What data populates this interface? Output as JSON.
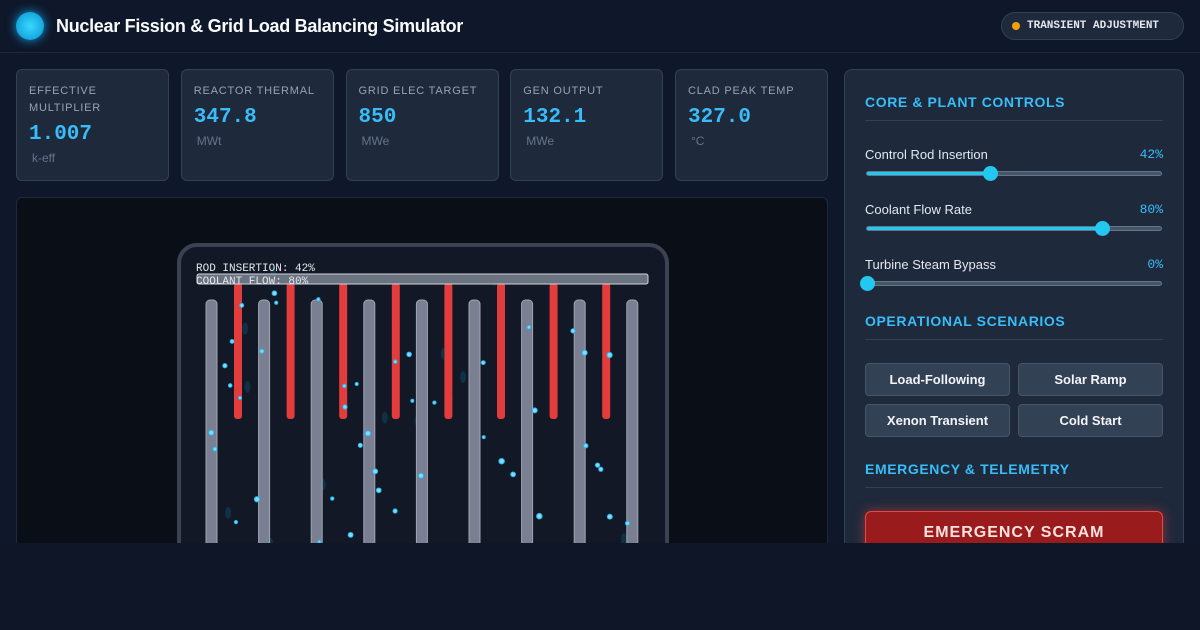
{
  "header": {
    "title": "Nuclear Fission & Grid Load Balancing Simulator",
    "status": "TRANSIENT ADJUSTMENT"
  },
  "metrics": [
    {
      "label": "EFFECTIVE MULTIPLIER",
      "value": "1.007",
      "unit": "k-eff"
    },
    {
      "label": "REACTOR THERMAL",
      "value": "347.8",
      "unit": "MWt"
    },
    {
      "label": "GRID ELEC TARGET",
      "value": "850",
      "unit": "MWe"
    },
    {
      "label": "GEN OUTPUT",
      "value": "132.1",
      "unit": "MWe"
    },
    {
      "label": "CLAD PEAK TEMP",
      "value": "327.0",
      "unit": "°C"
    }
  ],
  "simulation": {
    "overlay": [
      "ROD INSERTION: 42%",
      "COOLANT FLOW: 80%"
    ]
  },
  "controls_panel": {
    "title": "CORE & PLANT CONTROLS",
    "controls": [
      {
        "label": "Control Rod Insertion",
        "value": 42,
        "value_label": "42%"
      },
      {
        "label": "Coolant Flow Rate",
        "value": 80,
        "value_label": "80%"
      },
      {
        "label": "Turbine Steam Bypass",
        "value": 0,
        "value_label": "0%"
      }
    ]
  },
  "scenarios": {
    "title": "OPERATIONAL SCENARIOS",
    "buttons": [
      "Load-Following",
      "Solar Ramp",
      "Xenon Transient",
      "Cold Start"
    ]
  },
  "emergency": {
    "title": "EMERGENCY & TELEMETRY",
    "button": "EMERGENCY SCRAM"
  }
}
